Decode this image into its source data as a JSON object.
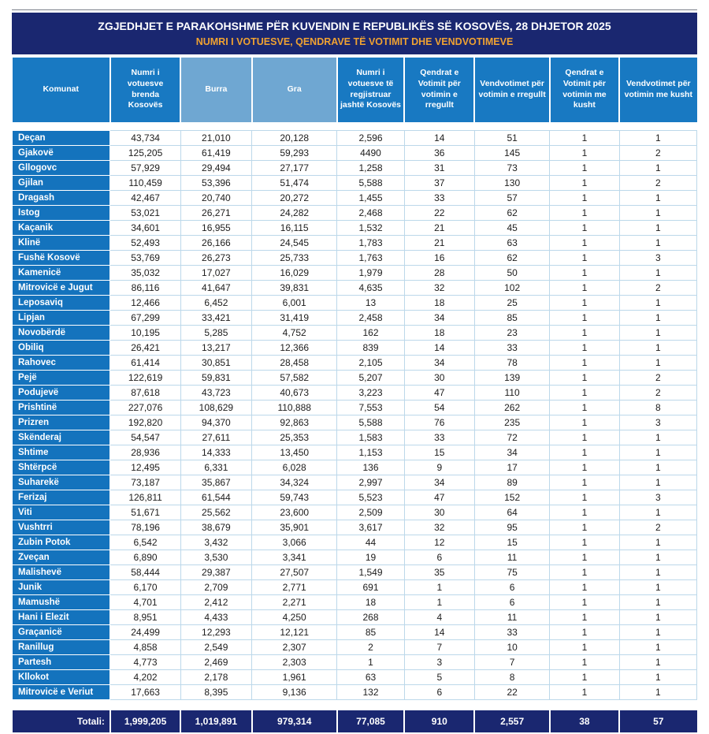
{
  "header": {
    "title": "ZGJEDHJET E PARAKOHSHME PËR KUVENDIN E REPUBLIKËS SË KOSOVËS, 28 DHJETOR 2025",
    "subtitle": "NUMRI I VOTUESVE, QENDRAVE TË VOTIMIT DHE VENDVOTIMEVE"
  },
  "table": {
    "columns": [
      "Komunat",
      "Numri i votuesve brenda Kosovës",
      "Burra",
      "Gra",
      "Numri i votuesve të regjistruar jashtë Kosovës",
      "Qendrat e Votimit për votimin e rregullt",
      "Vendvotimet për votimin e rregullt",
      "Qendrat e Votimit për votimin me kusht",
      "Vendvotimet për votimin me kusht"
    ],
    "rows": [
      [
        "Deçan",
        "43,734",
        "21,010",
        "20,128",
        "2,596",
        "14",
        "51",
        "1",
        "1"
      ],
      [
        "Gjakovë",
        "125,205",
        "61,419",
        "59,293",
        "4490",
        "36",
        "145",
        "1",
        "2"
      ],
      [
        "Gllogovc",
        "57,929",
        "29,494",
        "27,177",
        "1,258",
        "31",
        "73",
        "1",
        "1"
      ],
      [
        "Gjilan",
        "110,459",
        "53,396",
        "51,474",
        "5,588",
        "37",
        "130",
        "1",
        "2"
      ],
      [
        "Dragash",
        "42,467",
        "20,740",
        "20,272",
        "1,455",
        "33",
        "57",
        "1",
        "1"
      ],
      [
        "Istog",
        "53,021",
        "26,271",
        "24,282",
        "2,468",
        "22",
        "62",
        "1",
        "1"
      ],
      [
        "Kaçanik",
        "34,601",
        "16,955",
        "16,115",
        "1,532",
        "21",
        "45",
        "1",
        "1"
      ],
      [
        "Klinë",
        "52,493",
        "26,166",
        "24,545",
        "1,783",
        "21",
        "63",
        "1",
        "1"
      ],
      [
        "Fushë Kosovë",
        "53,769",
        "26,273",
        "25,733",
        "1,763",
        "16",
        "62",
        "1",
        "3"
      ],
      [
        "Kamenicë",
        "35,032",
        "17,027",
        "16,029",
        "1,979",
        "28",
        "50",
        "1",
        "1"
      ],
      [
        "Mitrovicë e Jugut",
        "86,116",
        "41,647",
        "39,831",
        "4,635",
        "32",
        "102",
        "1",
        "2"
      ],
      [
        "Leposaviq",
        "12,466",
        "6,452",
        "6,001",
        "13",
        "18",
        "25",
        "1",
        "1"
      ],
      [
        "Lipjan",
        "67,299",
        "33,421",
        "31,419",
        "2,458",
        "34",
        "85",
        "1",
        "1"
      ],
      [
        "Novobërdë",
        "10,195",
        "5,285",
        "4,752",
        "162",
        "18",
        "23",
        "1",
        "1"
      ],
      [
        "Obiliq",
        "26,421",
        "13,217",
        "12,366",
        "839",
        "14",
        "33",
        "1",
        "1"
      ],
      [
        "Rahovec",
        "61,414",
        "30,851",
        "28,458",
        "2,105",
        "34",
        "78",
        "1",
        "1"
      ],
      [
        "Pejë",
        "122,619",
        "59,831",
        "57,582",
        "5,207",
        "30",
        "139",
        "1",
        "2"
      ],
      [
        "Podujevë",
        "87,618",
        "43,723",
        "40,673",
        "3,223",
        "47",
        "110",
        "1",
        "2"
      ],
      [
        "Prishtinë",
        "227,076",
        "108,629",
        "110,888",
        "7,553",
        "54",
        "262",
        "1",
        "8"
      ],
      [
        "Prizren",
        "192,820",
        "94,370",
        "92,863",
        "5,588",
        "76",
        "235",
        "1",
        "3"
      ],
      [
        "Skënderaj",
        "54,547",
        "27,611",
        "25,353",
        "1,583",
        "33",
        "72",
        "1",
        "1"
      ],
      [
        "Shtime",
        "28,936",
        "14,333",
        "13,450",
        "1,153",
        "15",
        "34",
        "1",
        "1"
      ],
      [
        "Shtërpcë",
        "12,495",
        "6,331",
        "6,028",
        "136",
        "9",
        "17",
        "1",
        "1"
      ],
      [
        "Suharekë",
        "73,187",
        "35,867",
        "34,324",
        "2,997",
        "34",
        "89",
        "1",
        "1"
      ],
      [
        "Ferizaj",
        "126,811",
        "61,544",
        "59,743",
        "5,523",
        "47",
        "152",
        "1",
        "3"
      ],
      [
        "Viti",
        "51,671",
        "25,562",
        "23,600",
        "2,509",
        "30",
        "64",
        "1",
        "1"
      ],
      [
        "Vushtrri",
        "78,196",
        "38,679",
        "35,901",
        "3,617",
        "32",
        "95",
        "1",
        "2"
      ],
      [
        "Zubin Potok",
        "6,542",
        "3,432",
        "3,066",
        "44",
        "12",
        "15",
        "1",
        "1"
      ],
      [
        "Zveçan",
        "6,890",
        "3,530",
        "3,341",
        "19",
        "6",
        "11",
        "1",
        "1"
      ],
      [
        "Malishevë",
        "58,444",
        "29,387",
        "27,507",
        "1,549",
        "35",
        "75",
        "1",
        "1"
      ],
      [
        "Junik",
        "6,170",
        "2,709",
        "2,771",
        "691",
        "1",
        "6",
        "1",
        "1"
      ],
      [
        "Mamushë",
        "4,701",
        "2,412",
        "2,271",
        "18",
        "1",
        "6",
        "1",
        "1"
      ],
      [
        "Hani i Elezit",
        "8,951",
        "4,433",
        "4,250",
        "268",
        "4",
        "11",
        "1",
        "1"
      ],
      [
        "Graçanicë",
        "24,499",
        "12,293",
        "12,121",
        "85",
        "14",
        "33",
        "1",
        "1"
      ],
      [
        "Ranillug",
        "4,858",
        "2,549",
        "2,307",
        "2",
        "7",
        "10",
        "1",
        "1"
      ],
      [
        "Partesh",
        "4,773",
        "2,469",
        "2,303",
        "1",
        "3",
        "7",
        "1",
        "1"
      ],
      [
        "Kllokot",
        "4,202",
        "2,178",
        "1,961",
        "63",
        "5",
        "8",
        "1",
        "1"
      ],
      [
        "Mitrovicë e Veriut",
        "17,663",
        "8,395",
        "9,136",
        "132",
        "6",
        "22",
        "1",
        "1"
      ]
    ]
  },
  "totals": {
    "label": "Totali:",
    "values": [
      "1,999,205",
      "1,019,891",
      "979,314",
      "77,085",
      "910",
      "2,557",
      "38",
      "57"
    ]
  },
  "colors": {
    "title_bar": "#1a2770",
    "title_text": "#ffffff",
    "subtitle_text": "#f0a231",
    "header_blue": "#1879c2",
    "header_light_blue": "#6fa7d2",
    "name_cell_blue": "#1473bd",
    "cell_border": "#bcd8ea",
    "totals_bar": "#1a2770"
  }
}
